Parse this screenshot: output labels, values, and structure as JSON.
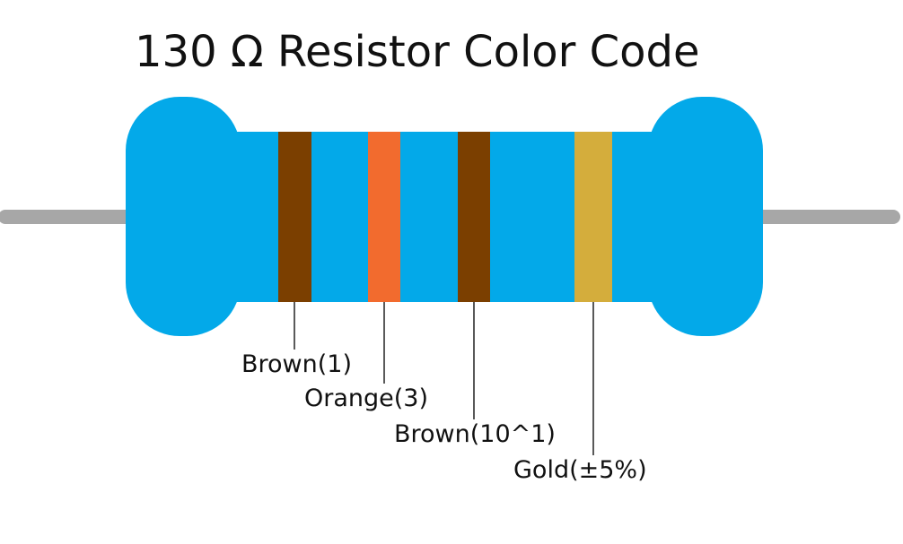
{
  "title": "130 Ω Resistor Color Code",
  "colors": {
    "body": "#03a9e9",
    "lead": "#a7a7a7",
    "leader_line": "#222222"
  },
  "bands": [
    {
      "name": "Brown",
      "color": "#7b3f00",
      "label": "Brown(1)"
    },
    {
      "name": "Orange",
      "color": "#f26b2e",
      "label": "Orange(3)"
    },
    {
      "name": "Brown",
      "color": "#7b3f00",
      "label": "Brown(10^1)"
    },
    {
      "name": "Gold",
      "color": "#d4ad3c",
      "label": "Gold(±5%)"
    }
  ]
}
